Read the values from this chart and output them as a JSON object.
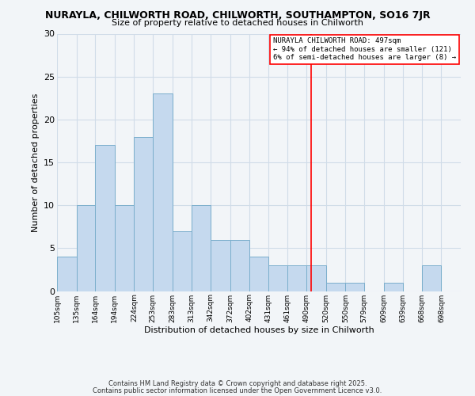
{
  "title": "NURAYLA, CHILWORTH ROAD, CHILWORTH, SOUTHAMPTON, SO16 7JR",
  "subtitle": "Size of property relative to detached houses in Chilworth",
  "xlabel": "Distribution of detached houses by size in Chilworth",
  "ylabel": "Number of detached properties",
  "bar_color": "#c5d9ee",
  "bar_edge_color": "#7aaecc",
  "grid_color": "#d0dce8",
  "background_color": "#f2f5f8",
  "bin_labels": [
    "105sqm",
    "135sqm",
    "164sqm",
    "194sqm",
    "224sqm",
    "253sqm",
    "283sqm",
    "313sqm",
    "342sqm",
    "372sqm",
    "402sqm",
    "431sqm",
    "461sqm",
    "490sqm",
    "520sqm",
    "550sqm",
    "579sqm",
    "609sqm",
    "639sqm",
    "668sqm",
    "698sqm"
  ],
  "bin_edges": [
    105,
    135,
    164,
    194,
    224,
    253,
    283,
    313,
    342,
    372,
    402,
    431,
    461,
    490,
    520,
    550,
    579,
    609,
    639,
    668,
    698,
    728
  ],
  "bar_heights": [
    4,
    10,
    17,
    10,
    18,
    23,
    7,
    10,
    6,
    6,
    4,
    3,
    3,
    3,
    1,
    1,
    0,
    1,
    0,
    3,
    0
  ],
  "property_line": 497,
  "annotation_title": "NURAYLA CHILWORTH ROAD: 497sqm",
  "annotation_line1": "← 94% of detached houses are smaller (121)",
  "annotation_line2": "6% of semi-detached houses are larger (8) →",
  "ylim": [
    0,
    30
  ],
  "yticks": [
    0,
    5,
    10,
    15,
    20,
    25,
    30
  ],
  "footer1": "Contains HM Land Registry data © Crown copyright and database right 2025.",
  "footer2": "Contains public sector information licensed under the Open Government Licence v3.0."
}
